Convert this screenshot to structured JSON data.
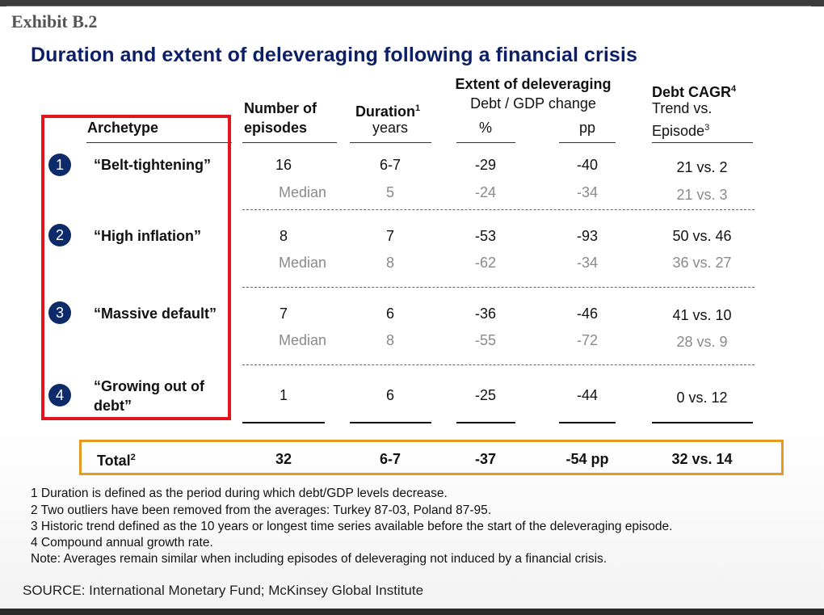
{
  "exhibit": "Exhibit B.2",
  "title": "Duration and extent of deleveraging following a financial crisis",
  "headers": {
    "archetype": "Archetype",
    "episodes_l1": "Number of",
    "episodes_l2": "episodes",
    "duration_l1": "Duration",
    "duration_sup": "1",
    "duration_l2": "years",
    "extent_l1": "Extent of deleveraging",
    "extent_l2": "Debt / GDP change",
    "extent_pct": "%",
    "extent_pp": "pp",
    "cagr_l1": "Debt CAGR",
    "cagr_sup": "4",
    "cagr_l2": "Trend vs.",
    "cagr_l3": "Episode",
    "cagr_l3_sup": "3"
  },
  "rows": [
    {
      "num": "1",
      "name": "“Belt-tightening”",
      "episodes": "16",
      "duration": "6-7",
      "pct": "-29",
      "pp": "-40",
      "cagr": "21 vs. 2",
      "median_label": "Median",
      "m_duration": "5",
      "m_pct": "-24",
      "m_pp": "-34",
      "m_cagr": "21 vs. 3"
    },
    {
      "num": "2",
      "name": "“High inflation”",
      "episodes": "8",
      "duration": "7",
      "pct": "-53",
      "pp": "-93",
      "cagr": "50 vs. 46",
      "median_label": "Median",
      "m_duration": "8",
      "m_pct": "-62",
      "m_pp": "-34",
      "m_cagr": "36 vs. 27"
    },
    {
      "num": "3",
      "name": "“Massive default”",
      "episodes": "7",
      "duration": "6",
      "pct": "-36",
      "pp": "-46",
      "cagr": "41 vs. 10",
      "median_label": "Median",
      "m_duration": "8",
      "m_pct": "-55",
      "m_pp": "-72",
      "m_cagr": "28 vs. 9"
    },
    {
      "num": "4",
      "name_l1": "“Growing out of",
      "name_l2": "debt”",
      "episodes": "1",
      "duration": "6",
      "pct": "-25",
      "pp": "-44",
      "cagr": "0 vs. 12"
    }
  ],
  "total": {
    "label": "Total",
    "sup": "2",
    "episodes": "32",
    "duration": "6-7",
    "pct": "-37",
    "pp": "-54 pp",
    "cagr": "32 vs. 14"
  },
  "footnotes": [
    "1 Duration is defined as the period during which debt/GDP levels decrease.",
    "2 Two outliers have been removed from the averages: Turkey 87-03, Poland 87-95.",
    "3 Historic trend defined as the 10 years or longest time series available before the start of the deleveraging episode.",
    "4 Compound annual growth rate.",
    "Note: Averages remain similar when including episodes of deleveraging not induced by a financial crisis."
  ],
  "source": "SOURCE: International Monetary Fund; McKinsey Global Institute"
}
